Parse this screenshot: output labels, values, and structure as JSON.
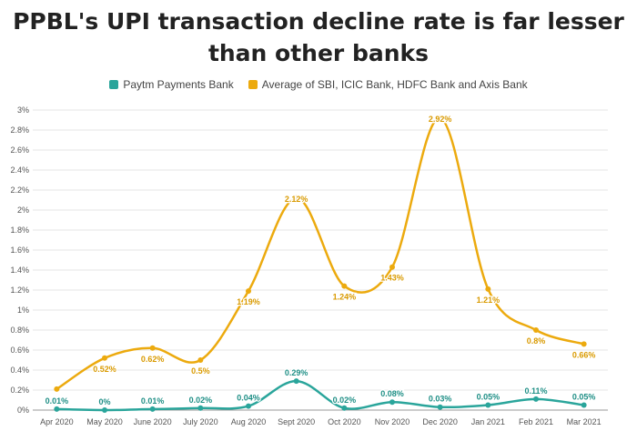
{
  "title": "PPBL's UPI transaction decline rate is far lesser than other banks",
  "colors": {
    "paytm": "#2aa59b",
    "average": "#ecaa0e",
    "grid": "#e6e6e6",
    "axis": "#999999"
  },
  "chart_data": {
    "type": "line",
    "title": "PPBL's UPI transaction decline rate is far lesser than other banks",
    "xlabel": "",
    "ylabel": "",
    "ylim": [
      0,
      3
    ],
    "y_ticks": [
      "0%",
      "0.2%",
      "0.4%",
      "0.6%",
      "0.8%",
      "1%",
      "1.2%",
      "1.4%",
      "1.6%",
      "1.8%",
      "2%",
      "2.2%",
      "2.4%",
      "2.6%",
      "2.8%",
      "3%"
    ],
    "grid": true,
    "legend_position": "top-center",
    "categories": [
      "Apr 2020",
      "May 2020",
      "June 2020",
      "July 2020",
      "Aug 2020",
      "Sept 2020",
      "Oct 2020",
      "Nov 2020",
      "Dec 2020",
      "Jan 2021",
      "Feb 2021",
      "Mar 2021"
    ],
    "series": [
      {
        "name": "Paytm Payments Bank",
        "values": [
          0.01,
          0,
          0.01,
          0.02,
          0.04,
          0.29,
          0.02,
          0.08,
          0.03,
          0.05,
          0.11,
          0.05
        ],
        "labels": [
          "0.01%",
          "0%",
          "0.01%",
          "0.02%",
          "0.04%",
          "0.29%",
          "0.02%",
          "0.08%",
          "0.03%",
          "0.05%",
          "0.11%",
          "0.05%"
        ]
      },
      {
        "name": "Average of SBI, ICIC Bank, HDFC Bank and Axis Bank",
        "values": [
          0.21,
          0.52,
          0.62,
          0.5,
          1.19,
          2.12,
          1.24,
          1.43,
          2.92,
          1.21,
          0.8,
          0.66
        ],
        "labels": [
          "",
          "0.52%",
          "0.62%",
          "0.5%",
          "1.19%",
          "2.12%",
          "1.24%",
          "1.43%",
          "2.92%",
          "1.21%",
          "0.8%",
          "0.66%"
        ]
      }
    ]
  }
}
